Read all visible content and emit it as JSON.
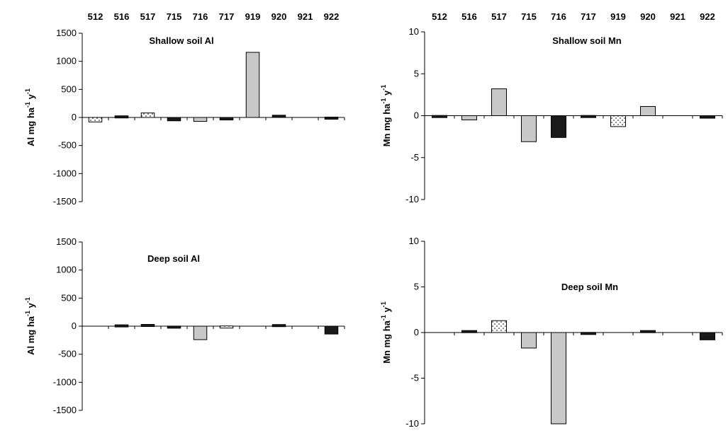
{
  "chart_data": [
    {
      "type": "bar",
      "id": "al-shallow",
      "title": "Shallow soil Al",
      "ylabel": "Al mg ha-1 y-1",
      "ylim": [
        -1500,
        1500
      ],
      "yticks": [
        1500,
        1000,
        500,
        0,
        -500,
        -1000,
        -1500
      ],
      "categories": [
        "512",
        "516",
        "517",
        "715",
        "716",
        "717",
        "919",
        "920",
        "921",
        "922"
      ],
      "values": [
        -80,
        20,
        80,
        -60,
        -70,
        -45,
        1160,
        40,
        0,
        -25
      ],
      "fills": [
        "dotted",
        "black",
        "dotted",
        "black",
        "gray",
        "black",
        "gray",
        "black",
        "none",
        "black"
      ],
      "show_categories": true
    },
    {
      "type": "bar",
      "id": "mn-shallow",
      "title": "Shallow soil Mn",
      "ylabel": "Mn mg ha-1 y-1",
      "ylim": [
        -10,
        10
      ],
      "yticks": [
        10,
        5,
        0,
        -5,
        -10
      ],
      "categories": [
        "512",
        "516",
        "517",
        "715",
        "716",
        "717",
        "919",
        "920",
        "921",
        "922"
      ],
      "values": [
        -0.2,
        -0.5,
        3.2,
        -3.1,
        -2.6,
        -0.2,
        -1.3,
        1.1,
        0,
        -0.3
      ],
      "fills": [
        "black",
        "gray",
        "gray",
        "gray",
        "black",
        "black",
        "dotted",
        "gray",
        "none",
        "black"
      ],
      "show_categories": true
    },
    {
      "type": "bar",
      "id": "al-deep",
      "title": "Deep soil Al",
      "ylabel": "Al mg ha-1 y-1",
      "ylim": [
        -1500,
        1500
      ],
      "yticks": [
        1500,
        1000,
        500,
        0,
        -500,
        -1000,
        -1500
      ],
      "categories": [
        "512",
        "516",
        "517",
        "715",
        "716",
        "717",
        "919",
        "920",
        "921",
        "922"
      ],
      "values": [
        0,
        10,
        25,
        -35,
        -240,
        -30,
        0,
        20,
        0,
        -140
      ],
      "fills": [
        "none",
        "black",
        "black",
        "black",
        "gray",
        "dotted",
        "none",
        "black",
        "none",
        "black"
      ],
      "show_categories": false
    },
    {
      "type": "bar",
      "id": "mn-deep",
      "title": "Deep soil Mn",
      "ylabel": "Mn mg ha-1 y-1",
      "ylim": [
        -10,
        10
      ],
      "yticks": [
        10,
        5,
        0,
        -5,
        -10
      ],
      "categories": [
        "512",
        "516",
        "517",
        "715",
        "716",
        "717",
        "919",
        "920",
        "921",
        "922"
      ],
      "values": [
        0,
        0.2,
        1.3,
        -1.7,
        -10,
        -0.2,
        0,
        0.2,
        0,
        -0.8
      ],
      "fills": [
        "none",
        "black",
        "dotted",
        "gray",
        "gray",
        "black",
        "none",
        "black",
        "none",
        "black"
      ],
      "show_categories": false
    }
  ],
  "colors": {
    "gray": "#c8c8c8",
    "black": "#1a1a1a",
    "dotted": "#ffffff",
    "axis": "#000000"
  }
}
